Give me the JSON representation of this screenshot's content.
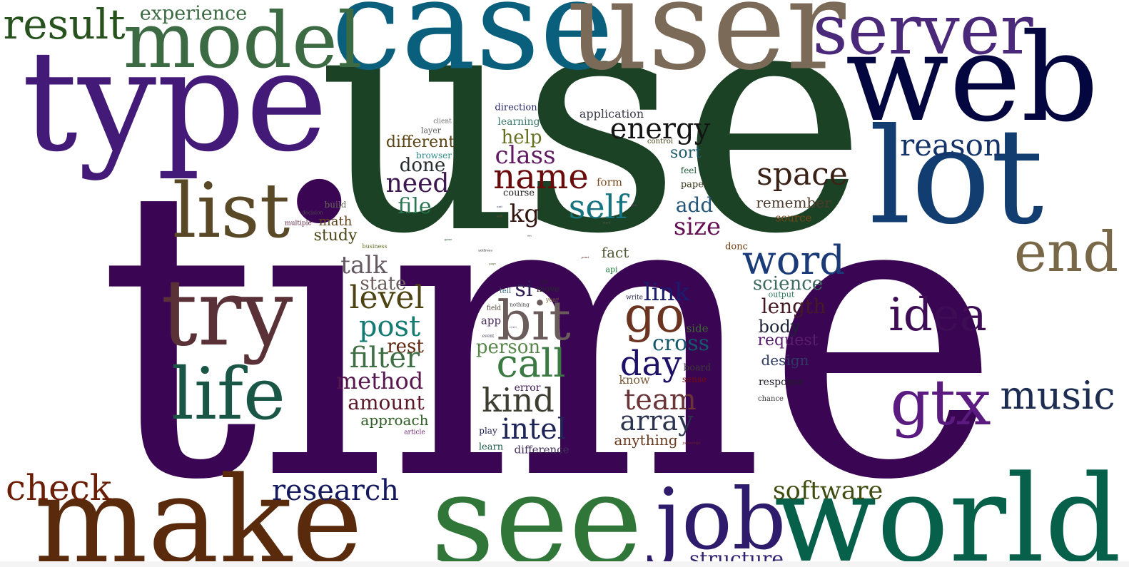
{
  "words": [
    {
      "text": "time",
      "color": "#3a0552"
    },
    {
      "text": "use",
      "color": "#1c4225"
    },
    {
      "text": "case",
      "color": "#0a607c"
    },
    {
      "text": "user",
      "color": "#7c6a58"
    },
    {
      "text": "type",
      "color": "#431a78"
    },
    {
      "text": "web",
      "color": "#04063f"
    },
    {
      "text": "lot",
      "color": "#123d70"
    },
    {
      "text": "model",
      "color": "#3c6b43"
    },
    {
      "text": "server",
      "color": "#4a287a"
    },
    {
      "text": "make",
      "color": "#5a2a0d"
    },
    {
      "text": "see",
      "color": "#2f7638"
    },
    {
      "text": "world",
      "color": "#06604a"
    },
    {
      "text": "try",
      "color": "#5a3136"
    },
    {
      "text": "list",
      "color": "#5a4926"
    },
    {
      "text": "life",
      "color": "#1a5646"
    },
    {
      "text": "job",
      "color": "#2e1b6c"
    },
    {
      "text": "end",
      "color": "#786848"
    },
    {
      "text": "gtx",
      "color": "#5a1a80"
    },
    {
      "text": "idea",
      "color": "#3e0d55"
    },
    {
      "text": "result",
      "color": "#27521d"
    },
    {
      "text": "experience",
      "color": "#3c6b43"
    },
    {
      "text": "music",
      "color": "#1d2d52"
    },
    {
      "text": "bit",
      "color": "#6a5c5a"
    },
    {
      "text": "go",
      "color": "#6a3420"
    },
    {
      "text": "word",
      "color": "#1a3a78"
    },
    {
      "text": "check",
      "color": "#6a1e05"
    },
    {
      "text": "research",
      "color": "#14185c"
    },
    {
      "text": "software",
      "color": "#3f4d12"
    },
    {
      "text": "reason",
      "color": "#14346a"
    },
    {
      "text": "space",
      "color": "#3a2316"
    },
    {
      "text": "energy",
      "color": "#141414"
    },
    {
      "text": "name",
      "color": "#6b0a0a"
    },
    {
      "text": "self",
      "color": "#167480"
    },
    {
      "text": "call",
      "color": "#3c7a43"
    },
    {
      "text": "kind",
      "color": "#3d3d32"
    },
    {
      "text": "intel",
      "color": "#1e2458"
    },
    {
      "text": "team",
      "color": "#6a3438"
    },
    {
      "text": "day",
      "color": "#1e1168"
    },
    {
      "text": "array",
      "color": "#2c3450"
    },
    {
      "text": "level",
      "color": "#4d4211"
    },
    {
      "text": "post",
      "color": "#137b72"
    },
    {
      "text": "filter",
      "color": "#3f6e44"
    },
    {
      "text": "talk",
      "color": "#665a62"
    },
    {
      "text": "method",
      "color": "#57164f"
    },
    {
      "text": "amount",
      "color": "#5b1727"
    },
    {
      "text": "need",
      "color": "#3d1750"
    },
    {
      "text": "file",
      "color": "#2b7753"
    },
    {
      "text": "class",
      "color": "#621a63"
    },
    {
      "text": "kg",
      "color": "#32140e"
    },
    {
      "text": "state",
      "color": "#6b5d5b"
    },
    {
      "text": "rest",
      "color": "#60270f"
    },
    {
      "text": "approach",
      "color": "#2f5e24"
    },
    {
      "text": "done",
      "color": "#262b2b"
    },
    {
      "text": "different",
      "color": "#5a4314"
    },
    {
      "text": "help",
      "color": "#657021"
    },
    {
      "text": "study",
      "color": "#4b4416"
    },
    {
      "text": "math",
      "color": "#5f4318"
    },
    {
      "text": "si",
      "color": "#2e1d54"
    },
    {
      "text": "person",
      "color": "#58864a"
    },
    {
      "text": "link",
      "color": "#1c1c6e"
    },
    {
      "text": "cross",
      "color": "#14596b"
    },
    {
      "text": "science",
      "color": "#3d6a5e"
    },
    {
      "text": "length",
      "color": "#451a24"
    },
    {
      "text": "body",
      "color": "#1e2436"
    },
    {
      "text": "request",
      "color": "#5a1e6e"
    },
    {
      "text": "design",
      "color": "#2e3a63"
    },
    {
      "text": "add",
      "color": "#24567a"
    },
    {
      "text": "size",
      "color": "#630e52"
    },
    {
      "text": "remember",
      "color": "#4e3a2d"
    },
    {
      "text": "sort",
      "color": "#1e5a6a"
    },
    {
      "text": "application",
      "color": "#3d3d4a"
    },
    {
      "text": "fact",
      "color": "#4f5a35"
    },
    {
      "text": "source",
      "color": "#7a4516"
    },
    {
      "text": "anything",
      "color": "#6a3a1e"
    },
    {
      "text": "error",
      "color": "#3f1a52"
    },
    {
      "text": "difference",
      "color": "#42305a"
    },
    {
      "text": "play",
      "color": "#1a1e4a"
    },
    {
      "text": "learn",
      "color": "#1e5a4a"
    },
    {
      "text": "app",
      "color": "#4a2d5a"
    },
    {
      "text": "tell",
      "color": "#3a6a7a"
    },
    {
      "text": "move",
      "color": "#28282e"
    },
    {
      "text": "nothing",
      "color": "#3a3a3a"
    },
    {
      "text": "field",
      "color": "#4a3a2a"
    },
    {
      "text": "year",
      "color": "#7a6a3a"
    },
    {
      "text": "let",
      "color": "#222222"
    },
    {
      "text": "write",
      "color": "#22224a"
    },
    {
      "text": "board",
      "color": "#3a3a3a"
    },
    {
      "text": "side",
      "color": "#3a6a2e"
    },
    {
      "text": "sense",
      "color": "#7a0a0a"
    },
    {
      "text": "know",
      "color": "#7a5a3a"
    },
    {
      "text": "response",
      "color": "#1e1e2a"
    },
    {
      "text": "chance",
      "color": "#3a3a3a"
    },
    {
      "text": "output",
      "color": "#2e7a5a"
    },
    {
      "text": "api",
      "color": "#1e7a3a"
    },
    {
      "text": "donc",
      "color": "#6a3a0a"
    },
    {
      "text": "direction",
      "color": "#2a2a6a"
    },
    {
      "text": "learning",
      "color": "#3a7a6a"
    },
    {
      "text": "client",
      "color": "#6a6a6a"
    },
    {
      "text": "layer",
      "color": "#5a5a5a"
    },
    {
      "text": "browser",
      "color": "#2e8a8a"
    },
    {
      "text": "control",
      "color": "#4a4a1e"
    },
    {
      "text": "feel",
      "color": "#1e5a3a"
    },
    {
      "text": "paper",
      "color": "#3a3a1e"
    },
    {
      "text": "form",
      "color": "#7a4a1e"
    },
    {
      "text": "course",
      "color": "#1e1e1e"
    },
    {
      "text": "build",
      "color": "#6a6a5a"
    },
    {
      "text": "decision",
      "color": "#4a4a4a"
    },
    {
      "text": "multiple",
      "color": "#5a1e3a"
    },
    {
      "text": "business",
      "color": "#5a6a1e"
    },
    {
      "text": "article",
      "color": "#6a1e6a"
    },
    {
      "text": "event",
      "color": "#4a3a5a"
    },
    {
      "text": "javascript",
      "color": "#6a2a1e"
    },
    {
      "text": "address",
      "color": "#3a3a3a"
    },
    {
      "text": "sure",
      "color": "#5a5a5a"
    },
    {
      "text": "unit",
      "color": "#3a3a6a"
    },
    {
      "text": "data",
      "color": "#6a3a6a"
    },
    {
      "text": "game",
      "color": "#2e5a2e"
    },
    {
      "text": "page",
      "color": "#4a6a2e"
    },
    {
      "text": "sell",
      "color": "#6a4a2e"
    },
    {
      "text": "people",
      "color": "#2e2e5a"
    },
    {
      "text": "way",
      "color": "#1e1e1e"
    },
    {
      "text": "point",
      "color": "#5a1e1e"
    },
    {
      "text": "structure",
      "color": "#332270"
    }
  ]
}
